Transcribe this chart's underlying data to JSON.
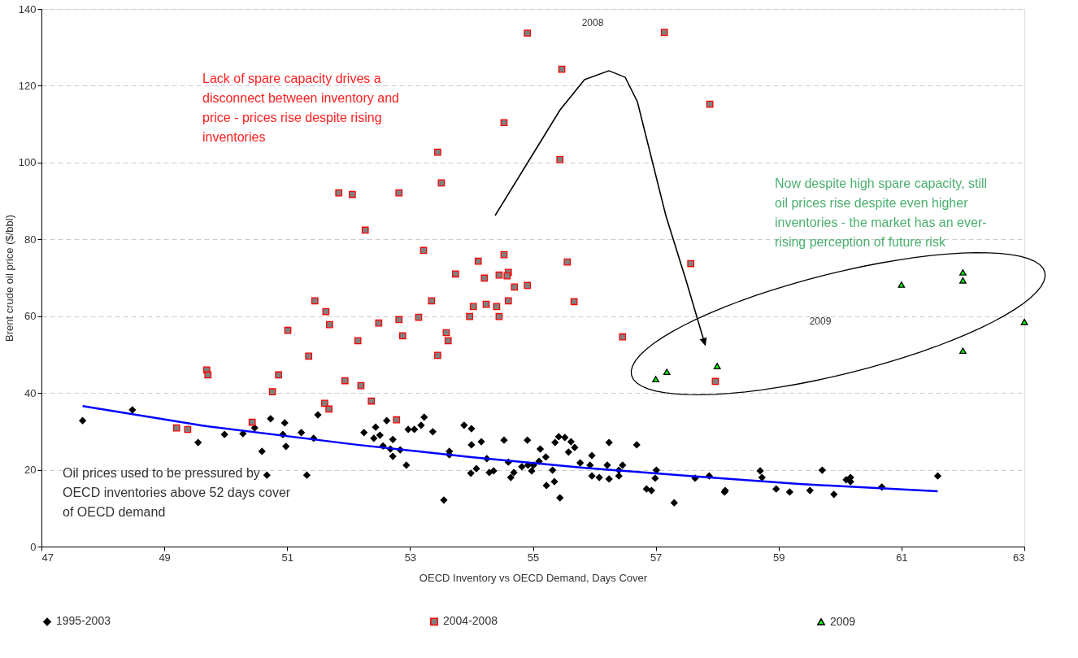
{
  "chart_data": {
    "type": "scatter",
    "xlabel": "OECD Inventory vs OECD Demand, Days Cover",
    "ylabel": "Brent crude oil price ($/bbl)",
    "xlim": [
      47,
      63
    ],
    "xticks": [
      47,
      49,
      51,
      53,
      55,
      57,
      59,
      61,
      63
    ],
    "ylim": [
      0,
      140
    ],
    "yticks": [
      0,
      20,
      40,
      60,
      80,
      100,
      120,
      140
    ],
    "grid": "y",
    "legend": "bottom",
    "annotations": [
      "Lack of spare capacity drives a\ndisconnect between inventory and\nprice - prices rise despite rising\ninventories",
      "2008",
      "Now despite high spare capacity, still\noil prices rise despite even higher\ninventories - the market has an ever-\nrising perception of future risk",
      "2009",
      "Oil prices used to be pressured by\nOECD inventories above 52 days cover\nof OECD demand"
    ],
    "series": [
      {
        "name": "1995-2003",
        "color": "#000000",
        "marker": "diamond",
        "x": [
          47.67,
          48.48,
          49.55,
          49.98,
          50.28,
          50.47,
          50.59,
          50.73,
          50.93,
          50.96,
          50.98,
          50.67,
          51.23,
          51.32,
          51.43,
          51.5,
          52.25,
          52.41,
          52.44,
          52.51,
          52.62,
          52.56,
          52.68,
          52.72,
          52.72,
          52.84,
          52.94,
          52.97,
          53.07,
          53.18,
          53.23,
          53.37,
          53.55,
          53.64,
          53.64,
          53.88,
          54.0,
          54.0,
          53.99,
          54.08,
          54.16,
          54.25,
          54.29,
          54.36,
          54.53,
          54.6,
          54.64,
          54.69,
          54.82,
          54.91,
          54.92,
          54.98,
          55.01,
          55.1,
          55.12,
          55.21,
          55.22,
          55.32,
          55.35,
          55.36,
          55.42,
          55.44,
          55.52,
          55.58,
          55.62,
          55.68,
          55.77,
          55.96,
          55.93,
          55.96,
          56.08,
          56.21,
          56.24,
          56.24,
          56.4,
          56.46,
          56.4,
          56.69,
          56.85,
          56.93,
          56.99,
          57.01,
          57.3,
          57.64,
          57.87,
          58.12,
          58.13,
          58.7,
          58.73,
          58.96,
          59.18,
          59.51,
          59.71,
          59.9,
          60.1,
          60.17,
          60.17,
          60.68,
          61.59
        ],
        "values": [
          32.8,
          35.6,
          27.1,
          29.2,
          29.4,
          30.9,
          24.8,
          33.3,
          29.2,
          32.2,
          26.1,
          18.6,
          29.7,
          18.6,
          28.2,
          34.3,
          29.7,
          28.2,
          31.1,
          29.0,
          32.8,
          26.2,
          25.4,
          27.9,
          23.5,
          25.2,
          21.2,
          30.5,
          30.5,
          31.6,
          33.7,
          29.9,
          12.1,
          24.8,
          23.9,
          31.6,
          30.7,
          26.5,
          19.1,
          20.3,
          27.3,
          22.9,
          19.3,
          19.7,
          27.7,
          22.0,
          18.0,
          19.3,
          20.8,
          27.7,
          21.2,
          19.7,
          21.2,
          22.2,
          25.4,
          23.3,
          15.9,
          19.9,
          16.9,
          27.1,
          28.6,
          12.7,
          28.4,
          24.6,
          27.3,
          25.8,
          21.8,
          23.7,
          21.2,
          18.4,
          18.0,
          21.2,
          27.1,
          17.6,
          18.4,
          21.2,
          19.9,
          26.5,
          15.0,
          14.6,
          17.8,
          19.9,
          11.4,
          17.8,
          18.4,
          14.2,
          14.6,
          19.7,
          18.0,
          15.0,
          14.2,
          14.6,
          19.9,
          13.6,
          17.4,
          18.0,
          16.9,
          15.5,
          18.4
        ]
      },
      {
        "name": "2004-2008",
        "color": "#ff0000",
        "marker": "square",
        "x": [
          54.91,
          55.47,
          54.53,
          53.45,
          55.44,
          53.51,
          51.84,
          52.06,
          52.82,
          52.27,
          53.22,
          54.11,
          54.53,
          55.56,
          53.74,
          54.21,
          54.45,
          54.6,
          54.58,
          54.7,
          54.91,
          55.67,
          53.35,
          54.6,
          54.03,
          54.24,
          54.41,
          51.45,
          51.63,
          51.69,
          53.97,
          54.45,
          53.14,
          52.82,
          52.49,
          51.01,
          52.15,
          52.88,
          53.59,
          53.62,
          53.45,
          51.35,
          49.69,
          49.71,
          50.86,
          51.94,
          52.2,
          50.76,
          51.61,
          51.68,
          49.2,
          49.38,
          50.43,
          52.78,
          52.37,
          56.46,
          57.14,
          57.88,
          57.57,
          57.97
        ],
        "values": [
          133.7,
          124.3,
          110.4,
          102.7,
          100.8,
          94.7,
          92.1,
          91.7,
          92.1,
          82.4,
          77.1,
          74.3,
          76.0,
          74.1,
          71.0,
          69.9,
          70.7,
          71.4,
          70.5,
          67.6,
          68.0,
          63.8,
          64.0,
          64.0,
          62.5,
          63.1,
          62.5,
          64.0,
          61.2,
          57.8,
          59.9,
          59.9,
          59.7,
          59.1,
          58.2,
          56.3,
          53.6,
          54.9,
          55.7,
          53.6,
          49.8,
          49.6,
          46.0,
          44.7,
          44.7,
          43.2,
          41.9,
          40.3,
          37.3,
          35.8,
          30.9,
          30.5,
          32.4,
          33.0,
          37.9,
          54.6,
          133.9,
          115.2,
          73.7,
          43.0
        ]
      },
      {
        "name": "2009",
        "color": "#00ff00",
        "marker": "triangle",
        "x": [
          57.0,
          57.18,
          58.0,
          61.0,
          62.0,
          62.0,
          62.0,
          63.0
        ],
        "values": [
          43.6,
          45.5,
          47.0,
          68.2,
          71.4,
          69.3,
          51.0,
          58.5
        ]
      },
      {
        "type": "line",
        "color": "#0000ff",
        "marker": "none",
        "x": [
          47.67,
          49.62,
          52.14,
          53.99,
          55.84,
          57.69,
          59.33,
          61.59
        ],
        "values": [
          36.6,
          31.5,
          26.5,
          23.3,
          20.5,
          18.2,
          16.3,
          14.4
        ]
      }
    ]
  }
}
